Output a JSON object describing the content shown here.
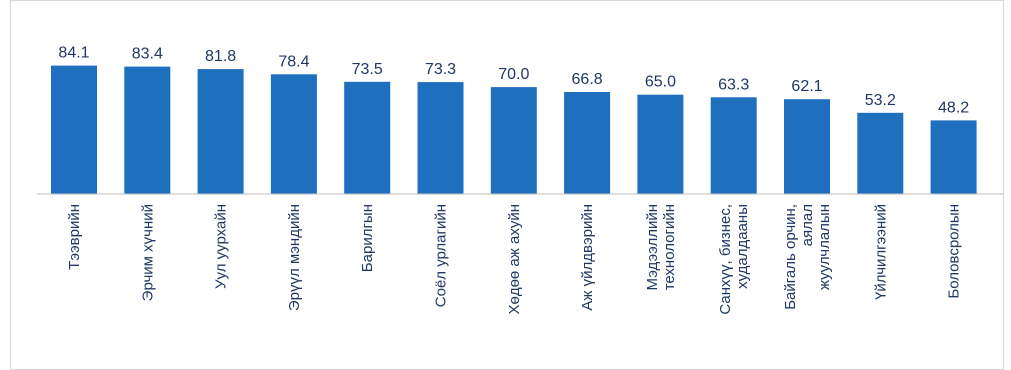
{
  "chart_data": {
    "type": "bar",
    "categories": [
      [
        "Тээврийн"
      ],
      [
        "Эрчим хүчний"
      ],
      [
        "Уул уурхайн"
      ],
      [
        "Эрүүл мэндийн"
      ],
      [
        "Барилгын"
      ],
      [
        "Соёл урлагийн"
      ],
      [
        "Хөдөө аж ахуйн"
      ],
      [
        "Аж үйлдвэрийн"
      ],
      [
        "Мэдээллийн",
        "технологийн"
      ],
      [
        "Санхүү, бизнес,",
        "худалдааны"
      ],
      [
        "Байгаль орчин,",
        "аялал",
        "жуулчлалын"
      ],
      [
        "Үйлчилгээний"
      ],
      [
        "Боловсролын"
      ]
    ],
    "values": [
      84.1,
      83.4,
      81.8,
      78.4,
      73.5,
      73.3,
      70.0,
      66.8,
      65.0,
      63.3,
      62.1,
      53.2,
      48.2
    ],
    "value_labels": [
      "84.1",
      "83.4",
      "81.8",
      "78.4",
      "73.5",
      "73.3",
      "70.0",
      "66.8",
      "65.0",
      "63.3",
      "62.1",
      "53.2",
      "48.2"
    ],
    "ylim": [
      0,
      100
    ],
    "grid": false,
    "legend": "none",
    "bar_color": "#1f6fbf",
    "label_color": "#1f3864"
  }
}
